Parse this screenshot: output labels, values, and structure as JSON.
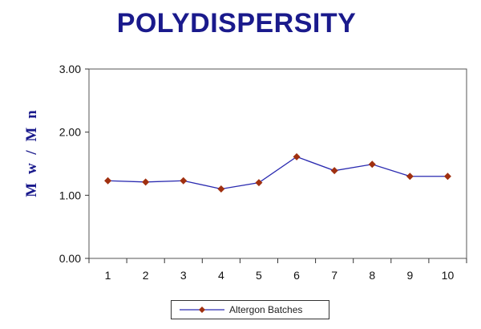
{
  "chart_data": {
    "type": "line",
    "title": "POLYDISPERSITY",
    "ylabel": "M w / M n",
    "xlabel": "",
    "categories": [
      "1",
      "2",
      "3",
      "4",
      "5",
      "6",
      "7",
      "8",
      "9",
      "10"
    ],
    "y_ticks": [
      "0.00",
      "1.00",
      "2.00",
      "3.00"
    ],
    "ylim": [
      0,
      3
    ],
    "series": [
      {
        "name": "Altergon Batches",
        "values": [
          1.23,
          1.21,
          1.23,
          1.1,
          1.2,
          1.61,
          1.39,
          1.49,
          1.3,
          1.3
        ],
        "line_color": "#2a2ab0",
        "marker_color": "#a03010",
        "marker": "diamond"
      }
    ],
    "grid": false,
    "legend": "bottom"
  }
}
